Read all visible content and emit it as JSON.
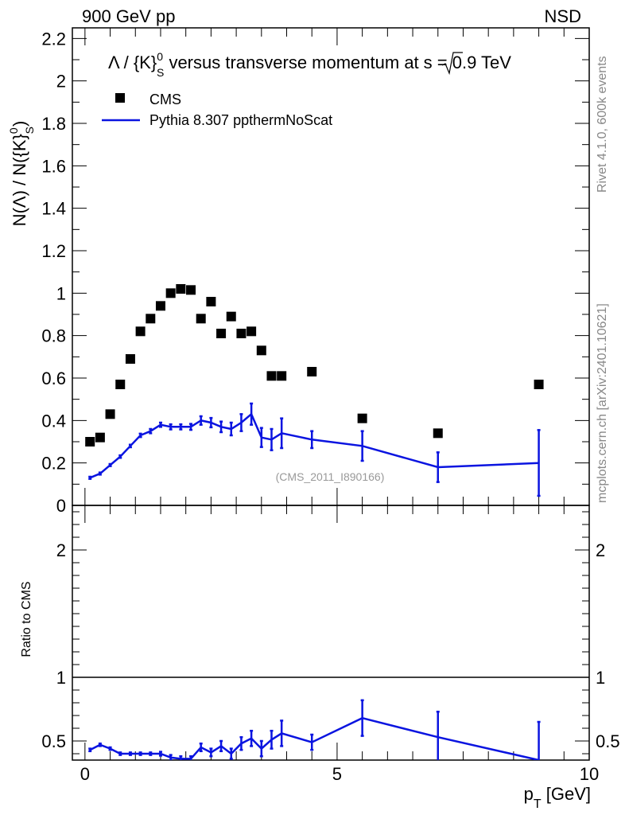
{
  "header": {
    "left": "900 GeV pp",
    "right": "NSD"
  },
  "side_text": {
    "rivet": "Rivet 4.1.0,  600k events",
    "site": "mcplots.cern.ch [arXiv:2401.10621]"
  },
  "plot": {
    "title_left": "Λ / {K}",
    "title_sup": "0",
    "title_sub": "S",
    "title_right": " versus transverse momentum at",
    "title_sqrt": "s",
    "title_end": " = 0.9 TeV",
    "analysis_label": "(CMS_2011_I890166)",
    "ylabel_main": "N(Λ)  /  N({K}",
    "ylabel_sup": "0",
    "ylabel_sub": "S",
    "ylabel_close": ")",
    "ylabel_ratio": "Ratio to CMS",
    "xlabel_p": "p",
    "xlabel_sub": "T",
    "xlabel_unit": " [GeV]"
  },
  "legend": {
    "data_label": "CMS",
    "mc_label": "Pythia 8.307 ppthermNoScat"
  },
  "colors": {
    "data": "#000000",
    "mc": "#0a14e0",
    "frame": "#000000"
  },
  "chart_data": {
    "type": "scatter",
    "title": "Λ / K0S versus transverse momentum at √s = 0.9 TeV",
    "xlabel": "pT [GeV]",
    "ylabel": "N(Λ) / N(K0S)",
    "xlim": [
      -0.25,
      10
    ],
    "ylim": [
      0,
      2.25
    ],
    "x_ticks": [
      0,
      5,
      10
    ],
    "y_ticks": [
      0,
      0.2,
      0.4,
      0.6,
      0.8,
      1,
      1.2,
      1.4,
      1.6,
      1.8,
      2,
      2.2
    ],
    "series": [
      {
        "name": "CMS",
        "style": "markers",
        "x": [
          0.1,
          0.3,
          0.5,
          0.7,
          0.9,
          1.1,
          1.3,
          1.5,
          1.7,
          1.9,
          2.1,
          2.3,
          2.5,
          2.7,
          2.9,
          3.1,
          3.3,
          3.5,
          3.7,
          3.9,
          4.5,
          5.5,
          7.0,
          9.0
        ],
        "y": [
          0.3,
          0.32,
          0.43,
          0.57,
          0.69,
          0.82,
          0.88,
          0.94,
          1.0,
          1.02,
          1.015,
          0.88,
          0.96,
          0.81,
          0.89,
          0.81,
          0.82,
          0.73,
          0.61,
          0.61,
          0.63,
          0.41,
          0.34,
          0.57
        ]
      },
      {
        "name": "Pythia 8.307 ppthermNoScat",
        "style": "line",
        "x": [
          0.1,
          0.3,
          0.5,
          0.7,
          0.9,
          1.1,
          1.3,
          1.5,
          1.7,
          1.9,
          2.1,
          2.3,
          2.5,
          2.7,
          2.9,
          3.1,
          3.3,
          3.5,
          3.7,
          3.9,
          4.5,
          5.5,
          7.0,
          9.0
        ],
        "y": [
          0.13,
          0.15,
          0.19,
          0.23,
          0.28,
          0.33,
          0.35,
          0.38,
          0.37,
          0.37,
          0.37,
          0.4,
          0.39,
          0.37,
          0.36,
          0.39,
          0.43,
          0.32,
          0.31,
          0.34,
          0.31,
          0.28,
          0.18,
          0.2
        ],
        "yerr": [
          0.005,
          0.005,
          0.005,
          0.006,
          0.006,
          0.008,
          0.01,
          0.01,
          0.012,
          0.012,
          0.014,
          0.02,
          0.022,
          0.025,
          0.03,
          0.04,
          0.05,
          0.045,
          0.05,
          0.07,
          0.04,
          0.07,
          0.07,
          0.155
        ]
      }
    ],
    "ratio": {
      "ylabel": "Ratio to CMS",
      "ylim": [
        0.35,
        2.35
      ],
      "y_ticks": [
        0.5,
        1,
        2
      ],
      "reference": 1,
      "x": [
        0.1,
        0.3,
        0.5,
        0.7,
        0.9,
        1.1,
        1.3,
        1.5,
        1.7,
        1.9,
        2.1,
        2.3,
        2.5,
        2.7,
        2.9,
        3.1,
        3.3,
        3.5,
        3.7,
        3.9,
        4.5,
        5.5,
        7.0,
        9.0
      ],
      "y": [
        0.43,
        0.47,
        0.44,
        0.4,
        0.4,
        0.4,
        0.4,
        0.4,
        0.37,
        0.36,
        0.36,
        0.45,
        0.41,
        0.46,
        0.4,
        0.48,
        0.52,
        0.44,
        0.51,
        0.56,
        0.49,
        0.68,
        0.53,
        0.35
      ],
      "yerr": [
        0.01,
        0.01,
        0.01,
        0.01,
        0.01,
        0.01,
        0.01,
        0.015,
        0.02,
        0.02,
        0.02,
        0.03,
        0.03,
        0.04,
        0.04,
        0.05,
        0.06,
        0.06,
        0.07,
        0.1,
        0.06,
        0.14,
        0.2,
        0.3
      ]
    }
  }
}
